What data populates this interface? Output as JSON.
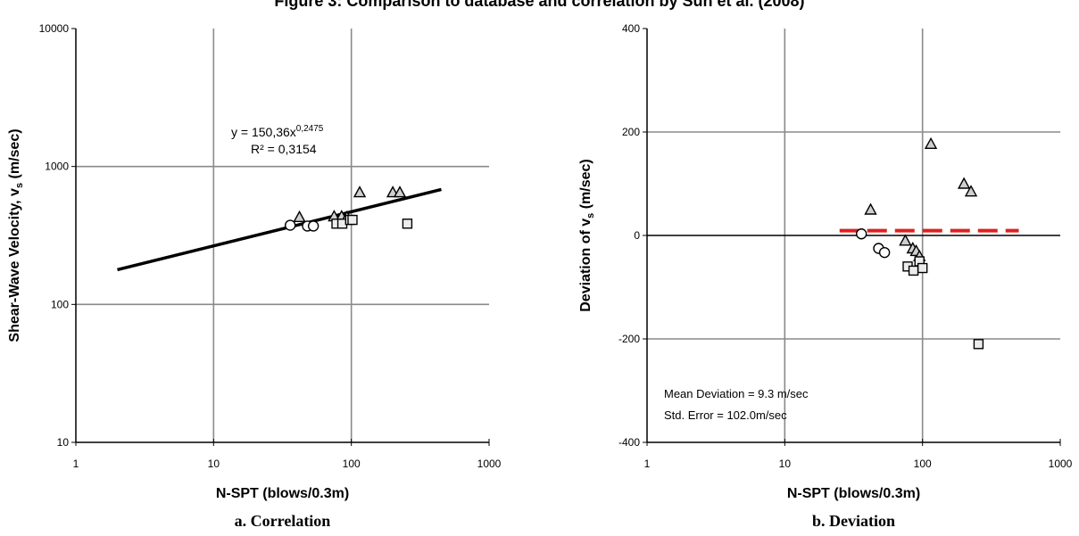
{
  "figure": {
    "title": "Figure 3: Comparison to database and correlation by Sun et al. (2008)"
  },
  "chart_data": [
    {
      "type": "scatter",
      "caption": "a. Correlation",
      "xlabel": "N-SPT (blows/0.3m)",
      "ylabel_main": "Shear-Wave Velocity, v",
      "ylabel_sub": "s",
      "ylabel_unit": " (m/sec)",
      "x_scale": "log",
      "y_scale": "log",
      "xlim": [
        1,
        1000
      ],
      "ylim": [
        10,
        10000
      ],
      "x_ticks": [
        "1",
        "10",
        "100",
        "1000"
      ],
      "y_ticks": [
        "10",
        "100",
        "1000",
        "10000"
      ],
      "grid": true,
      "equation_prefix": "y = 150,36x",
      "equation_exponent": "0,2475",
      "r_squared": "R² = 0,3154",
      "trendline": {
        "a": 150.36,
        "b": 0.2475,
        "x_range": [
          2,
          450
        ]
      },
      "series": [
        {
          "marker": "circle",
          "points": [
            [
              36,
              375
            ],
            [
              48,
              370
            ],
            [
              53,
              370
            ]
          ]
        },
        {
          "marker": "triangle",
          "points": [
            [
              42,
              430
            ],
            [
              75,
              435
            ],
            [
              85,
              435
            ],
            [
              93,
              430
            ],
            [
              115,
              650
            ],
            [
              200,
              650
            ],
            [
              225,
              650
            ]
          ]
        },
        {
          "marker": "square",
          "points": [
            [
              78,
              385
            ],
            [
              86,
              385
            ],
            [
              98,
              410
            ],
            [
              102,
              410
            ],
            [
              255,
              385
            ]
          ]
        }
      ]
    },
    {
      "type": "scatter",
      "caption": "b. Deviation",
      "xlabel": "N-SPT (blows/0.3m)",
      "ylabel_main": "Deviation of v",
      "ylabel_sub": "s",
      "ylabel_unit": " (m/sec)",
      "x_scale": "log",
      "y_scale": "linear",
      "xlim": [
        1,
        1000
      ],
      "ylim": [
        -400,
        400
      ],
      "x_ticks": [
        "1",
        "10",
        "100",
        "1000"
      ],
      "y_ticks": [
        "-400",
        "-200",
        "0",
        "200",
        "400"
      ],
      "grid": true,
      "mean_line": {
        "value": 9.3,
        "x_range": [
          25,
          500
        ],
        "color": "#e02020"
      },
      "annotation_mean": "Mean Deviation = 9.3 m/sec",
      "annotation_error": "Std. Error = 102.0m/sec",
      "series": [
        {
          "marker": "circle",
          "points": [
            [
              36,
              3
            ],
            [
              48,
              -25
            ],
            [
              53,
              -33
            ]
          ]
        },
        {
          "marker": "triangle",
          "points": [
            [
              42,
              50
            ],
            [
              75,
              -10
            ],
            [
              85,
              -25
            ],
            [
              90,
              -30
            ],
            [
              95,
              -40
            ],
            [
              115,
              177
            ],
            [
              200,
              100
            ],
            [
              225,
              85
            ]
          ]
        },
        {
          "marker": "square",
          "points": [
            [
              78,
              -60
            ],
            [
              86,
              -68
            ],
            [
              95,
              -50
            ],
            [
              100,
              -63
            ],
            [
              255,
              -210
            ]
          ]
        }
      ]
    }
  ]
}
